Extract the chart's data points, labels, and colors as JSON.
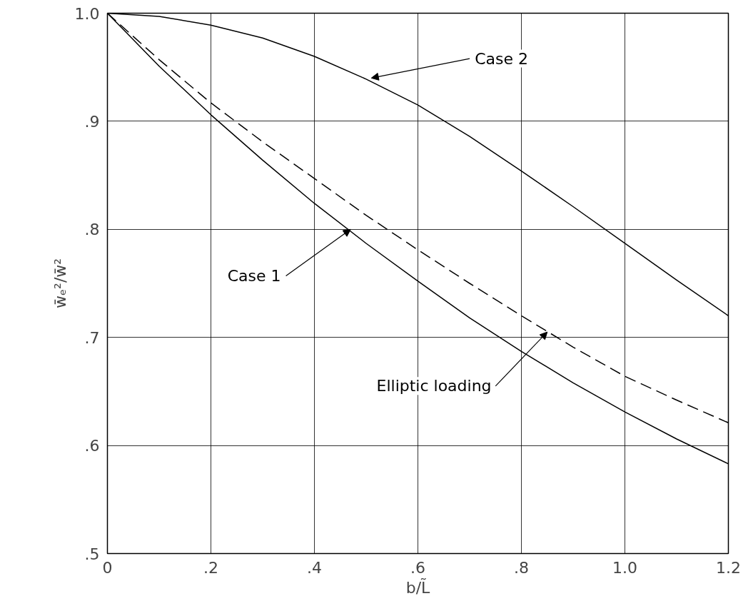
{
  "chart_data": {
    "type": "line",
    "xlabel": "b/L̃",
    "ylabel": "w̄ₑ²/w̄²",
    "x": [
      0,
      0.1,
      0.2,
      0.3,
      0.4,
      0.5,
      0.6,
      0.7,
      0.8,
      0.9,
      1.0,
      1.1,
      1.2
    ],
    "series": [
      {
        "color": "#000000",
        "line_style": "solid",
        "values": [
          1.0,
          0.997,
          0.989,
          0.977,
          0.96,
          0.939,
          0.915,
          0.886,
          0.854,
          0.821,
          0.787,
          0.753,
          0.72
        ]
      },
      {
        "color": "#000000",
        "line_style": "solid",
        "values": [
          1.0,
          0.951,
          0.906,
          0.864,
          0.824,
          0.787,
          0.752,
          0.718,
          0.687,
          0.658,
          0.631,
          0.606,
          0.583
        ]
      },
      {
        "color": "#000000",
        "line_style": "dashed",
        "values": [
          1.0,
          0.957,
          0.917,
          0.881,
          0.847,
          0.813,
          0.781,
          0.75,
          0.72,
          0.691,
          0.664,
          0.642,
          0.621
        ]
      }
    ],
    "xlim": [
      0,
      1.2
    ],
    "ylim": [
      0.5,
      1.0
    ],
    "xticks": [
      0,
      {
        "value": 0.2,
        "label": ".2"
      },
      {
        "value": 0.4,
        "label": ".4"
      },
      {
        "value": 0.6,
        "label": ".6"
      },
      {
        "value": 0.8,
        "label": ".8"
      },
      {
        "value": 1.0,
        "label": "1.0"
      },
      {
        "value": 1.2,
        "label": "1.2"
      }
    ],
    "yticks": [
      {
        "value": 0.5,
        "label": ".5"
      },
      {
        "value": 0.6,
        "label": ".6"
      },
      {
        "value": 0.7,
        "label": ".7"
      },
      {
        "value": 0.8,
        "label": ".8"
      },
      {
        "value": 0.9,
        "label": ".9"
      },
      {
        "value": 1.0,
        "label": "1.0"
      }
    ],
    "grid": true,
    "annotations": [
      {
        "text": "Case 2",
        "x": 0.51,
        "y": 0.94
      },
      {
        "text": "Case 1",
        "x": 0.47,
        "y": 0.8
      },
      {
        "text": "Elliptic loading",
        "x": 0.85,
        "y": 0.705
      }
    ]
  }
}
